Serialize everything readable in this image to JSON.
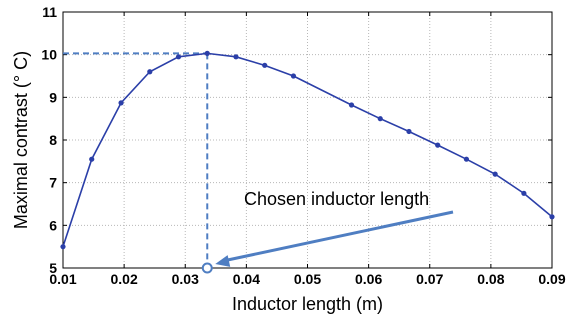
{
  "chart_data": {
    "type": "line",
    "title": "",
    "xlabel": "Inductor length (m)",
    "ylabel": "Maximal contrast (° C)",
    "xlim": [
      0.01,
      0.09
    ],
    "ylim": [
      5,
      11
    ],
    "xticks": [
      0.01,
      0.02,
      0.03,
      0.04,
      0.05,
      0.06,
      0.07,
      0.08,
      0.09
    ],
    "xtick_labels": [
      "0.01",
      "0.02",
      "0.03",
      "0.04",
      "0.05",
      "0.06",
      "0.07",
      "0.08",
      "0.09"
    ],
    "yticks": [
      5,
      6,
      7,
      8,
      9,
      10,
      11
    ],
    "ytick_labels": [
      "5",
      "6",
      "7",
      "8",
      "9",
      "10",
      "11"
    ],
    "grid": true,
    "series": [
      {
        "color": "#2B3FA8",
        "x": [
          0.01,
          0.0147,
          0.0195,
          0.0242,
          0.0289,
          0.0336,
          0.0383,
          0.043,
          0.0477,
          0.0572,
          0.0619,
          0.0666,
          0.0713,
          0.076,
          0.0807,
          0.0854,
          0.09
        ],
        "y": [
          5.5,
          7.55,
          8.87,
          9.6,
          9.95,
          10.03,
          9.95,
          9.75,
          9.5,
          8.82,
          8.5,
          8.2,
          7.88,
          7.55,
          7.2,
          6.75,
          6.2
        ]
      }
    ],
    "annotations": [
      {
        "text": "Chosen inductor length",
        "target_x": 0.0336,
        "target_y": 5,
        "arrow_color": "#4F7EC2",
        "guide_color": "#4F7EC2"
      }
    ]
  }
}
